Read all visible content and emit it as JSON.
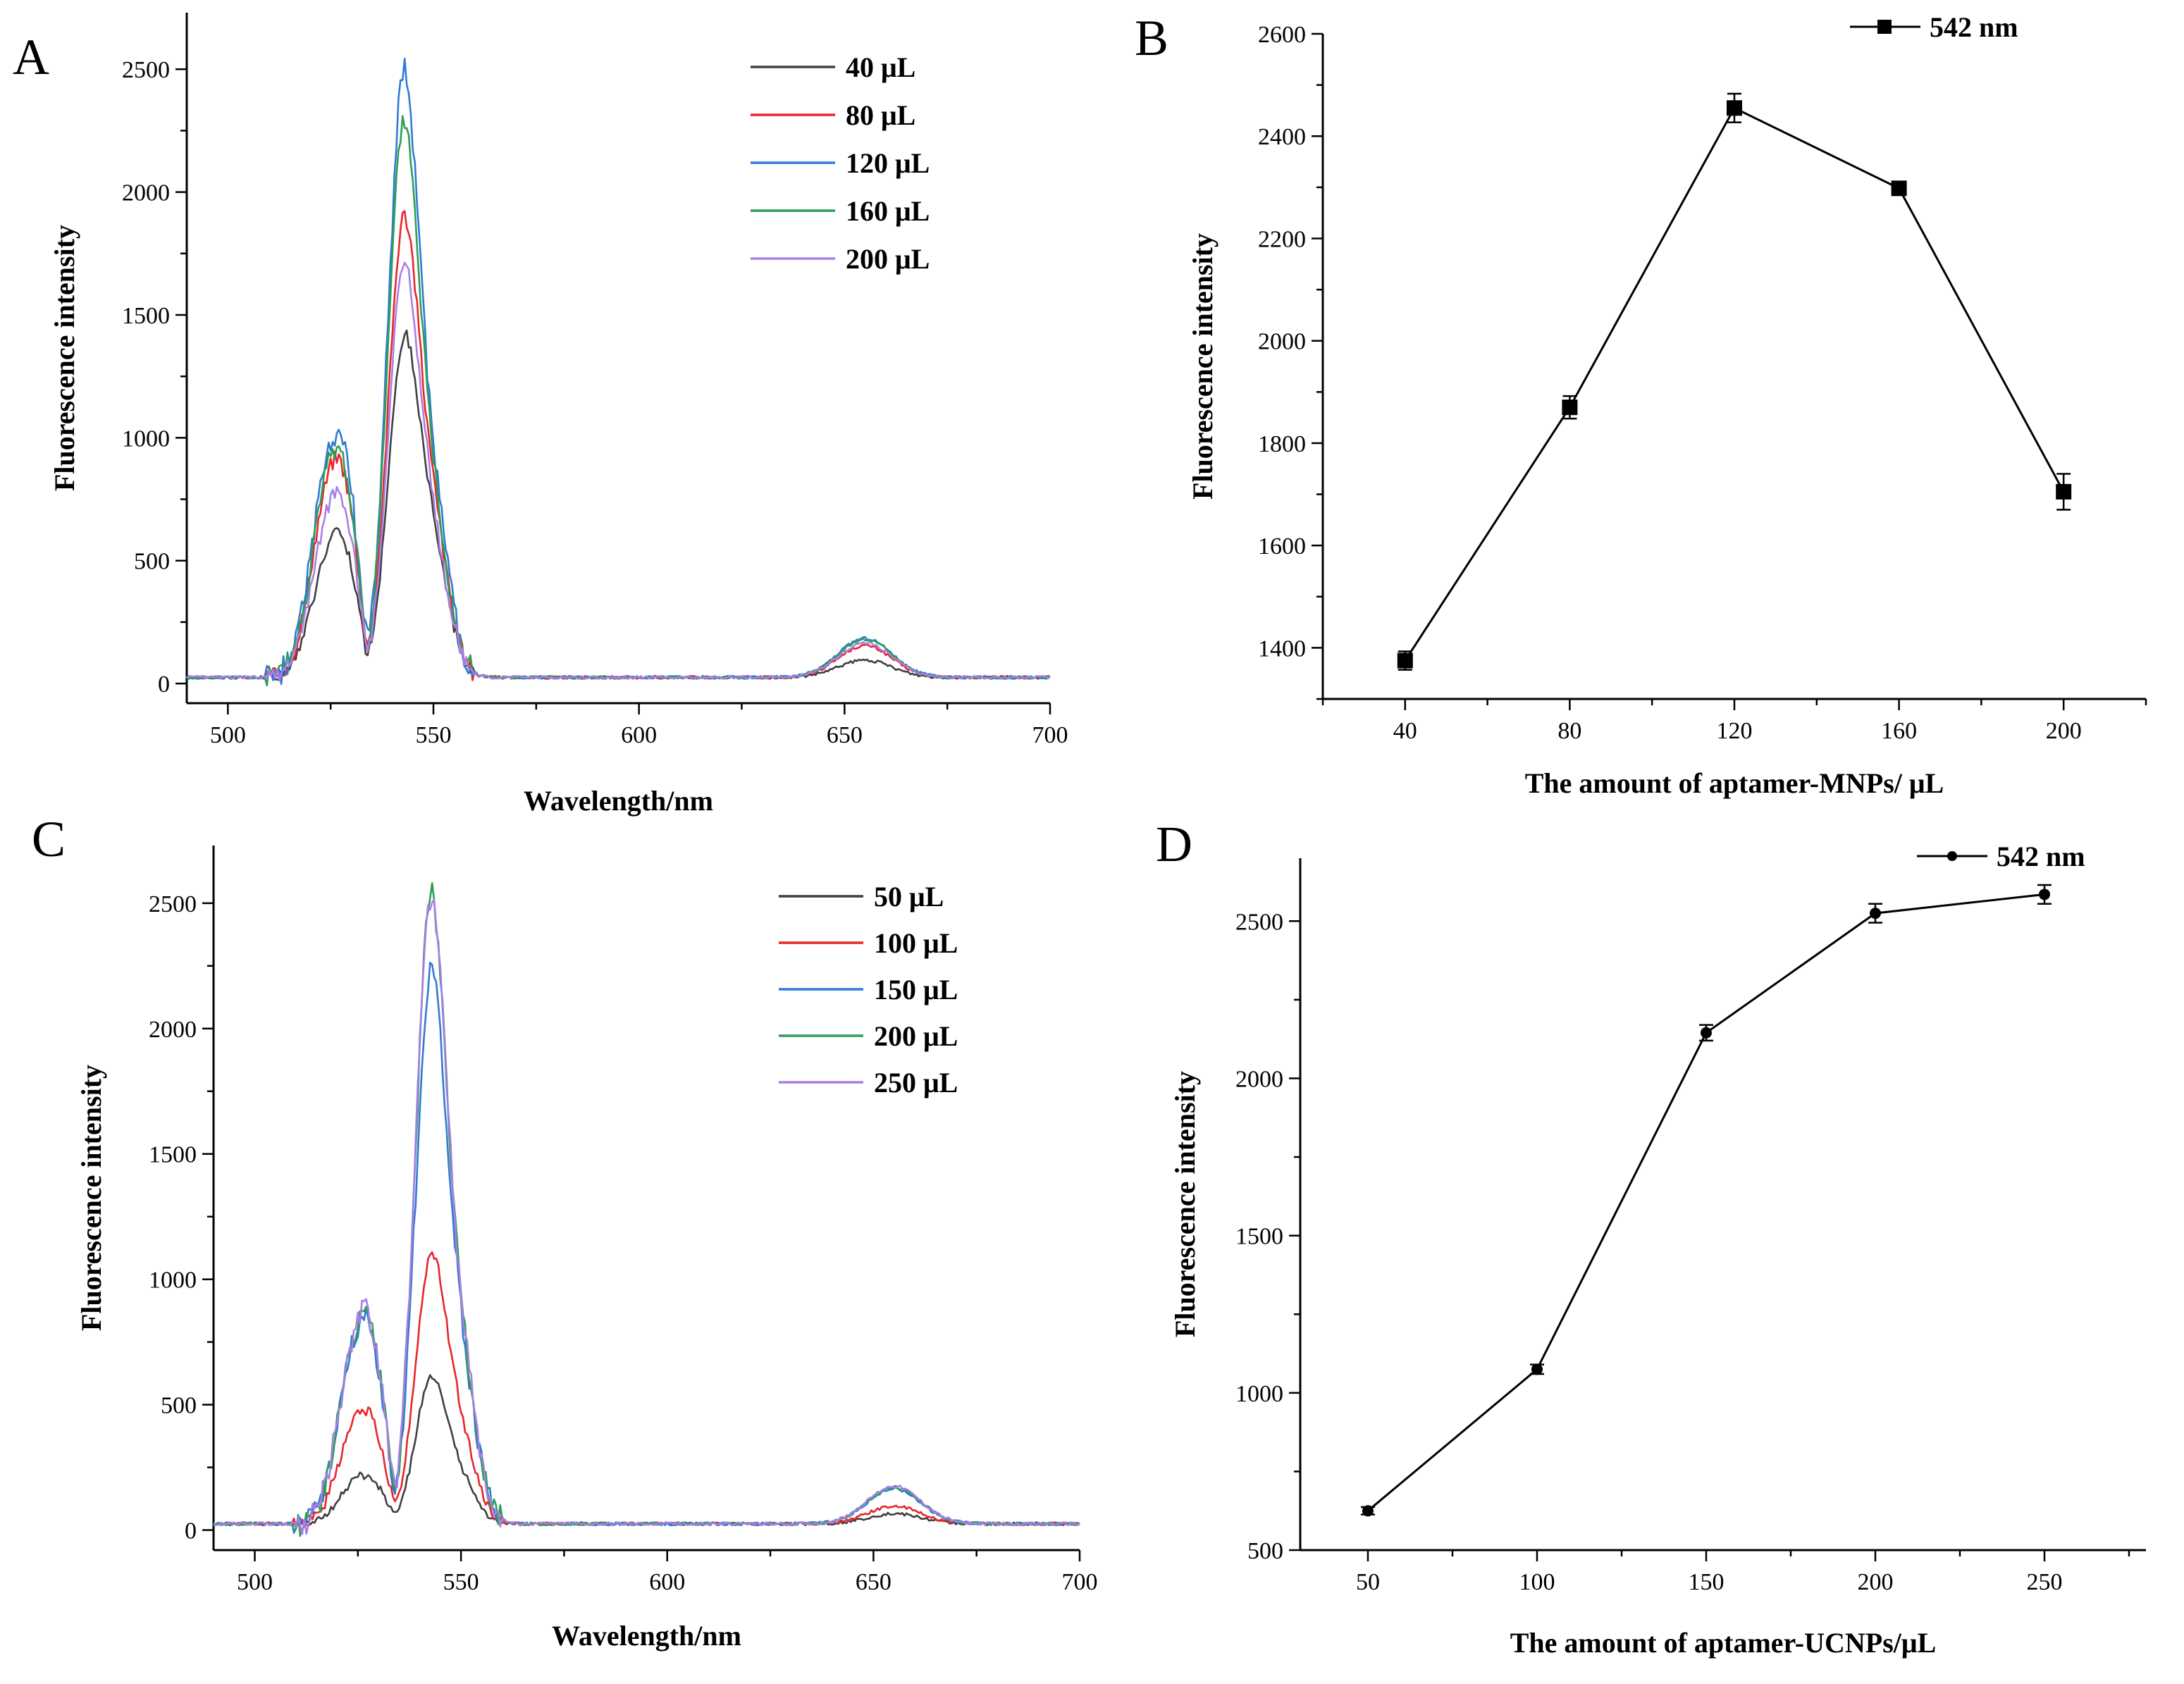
{
  "chart_data": [
    {
      "panel": "A",
      "type": "line",
      "xlabel": "Wavelength/nm",
      "ylabel": "Fluorescence intensity",
      "xlim": [
        490,
        700
      ],
      "ylim": [
        -80,
        2730
      ],
      "xticks": [
        500,
        550,
        600,
        650,
        700
      ],
      "yticks": [
        0,
        500,
        1000,
        1500,
        2000,
        2500
      ],
      "legend_position": "top-right",
      "peak_shape": {
        "base": 25,
        "baseline_noise": 6,
        "dip_at": 534,
        "green_band": [
          509,
          560
        ],
        "red_band": [
          640,
          672
        ]
      },
      "series": [
        {
          "name": "40 μL",
          "color": "#3f3f3f",
          "peak_525": 560,
          "shoulder_528": 585,
          "dip_534": 370,
          "peak_542": 1380,
          "shoulder_549": 1310,
          "peak_655": 95
        },
        {
          "name": "80 μL",
          "color": "#e8252b",
          "peak_525": 860,
          "shoulder_528": 860,
          "dip_534": 560,
          "peak_542": 1890,
          "shoulder_549": 1500,
          "peak_655": 155
        },
        {
          "name": "120 μL",
          "color": "#2f7bd4",
          "peak_525": 950,
          "shoulder_528": 965,
          "dip_534": 620,
          "peak_542": 2500,
          "shoulder_549": 1700,
          "peak_655": 185
        },
        {
          "name": "160 μL",
          "color": "#2e9e55",
          "peak_525": 900,
          "shoulder_528": 880,
          "dip_534": 585,
          "peak_542": 2290,
          "shoulder_549": 1620,
          "peak_655": 180
        },
        {
          "name": "200 μL",
          "color": "#a87ee8",
          "peak_525": 720,
          "shoulder_528": 740,
          "dip_534": 470,
          "peak_542": 1700,
          "shoulder_549": 1330,
          "peak_655": 165
        }
      ]
    },
    {
      "panel": "B",
      "type": "line",
      "xlabel": "The amount of aptamer-MNPs/ μL",
      "ylabel": "Fluorescence intensity",
      "xlim": [
        20,
        220
      ],
      "ylim": [
        1300,
        2600
      ],
      "xticks": [
        40,
        80,
        120,
        160,
        200
      ],
      "yticks": [
        1400,
        1600,
        1800,
        2000,
        2200,
        2400,
        2600
      ],
      "legend_position": "top-right",
      "series": [
        {
          "name": "542 nm",
          "color": "#000000",
          "marker": "square",
          "x": [
            40,
            80,
            120,
            160,
            200
          ],
          "y": [
            1375,
            1870,
            2455,
            2298,
            1705
          ],
          "error": [
            18,
            22,
            28,
            8,
            35
          ]
        }
      ]
    },
    {
      "panel": "C",
      "type": "line",
      "xlabel": "Wavelength/nm",
      "ylabel": "Fluorescence intensity",
      "xlim": [
        490,
        700
      ],
      "ylim": [
        -80,
        2730
      ],
      "xticks": [
        500,
        550,
        600,
        650,
        700
      ],
      "yticks": [
        0,
        500,
        1000,
        1500,
        2000,
        2500
      ],
      "legend_position": "top-right",
      "peak_shape": {
        "base": 25,
        "baseline_noise": 6,
        "dip_at": 534,
        "green_band": [
          509,
          560
        ],
        "red_band": [
          640,
          672
        ]
      },
      "series": [
        {
          "name": "50 μL",
          "color": "#3f3f3f",
          "peak_525": 205,
          "shoulder_528": 210,
          "dip_534": 150,
          "peak_542": 615,
          "shoulder_549": 440,
          "peak_655": 65
        },
        {
          "name": "100 μL",
          "color": "#e8252b",
          "peak_525": 455,
          "shoulder_528": 450,
          "dip_534": 310,
          "peak_542": 1100,
          "shoulder_549": 850,
          "peak_655": 95
        },
        {
          "name": "150 μL",
          "color": "#2f7bd4",
          "peak_525": 790,
          "shoulder_528": 780,
          "dip_534": 520,
          "peak_542": 2250,
          "shoulder_549": 1500,
          "peak_655": 165
        },
        {
          "name": "200 μL",
          "color": "#2e9e55",
          "peak_525": 800,
          "shoulder_528": 790,
          "dip_534": 500,
          "peak_542": 2560,
          "shoulder_549": 1560,
          "peak_655": 170
        },
        {
          "name": "250 μL",
          "color": "#a87ee8",
          "peak_525": 830,
          "shoulder_528": 810,
          "dip_534": 520,
          "peak_542": 2550,
          "shoulder_549": 1600,
          "peak_655": 175
        }
      ]
    },
    {
      "panel": "D",
      "type": "line",
      "xlabel": "The amount of aptamer-UCNPs/μL",
      "ylabel": "Fluorescence intensity",
      "xlim": [
        30,
        280
      ],
      "ylim": [
        500,
        2700
      ],
      "xticks": [
        50,
        100,
        150,
        200,
        250
      ],
      "yticks": [
        500,
        1000,
        1500,
        2000,
        2500
      ],
      "legend_position": "top-right",
      "series": [
        {
          "name": "542 nm",
          "color": "#000000",
          "marker": "circle",
          "x": [
            50,
            100,
            150,
            200,
            250
          ],
          "y": [
            625,
            1075,
            2145,
            2525,
            2585
          ],
          "error": [
            12,
            15,
            25,
            30,
            30
          ]
        }
      ]
    }
  ]
}
